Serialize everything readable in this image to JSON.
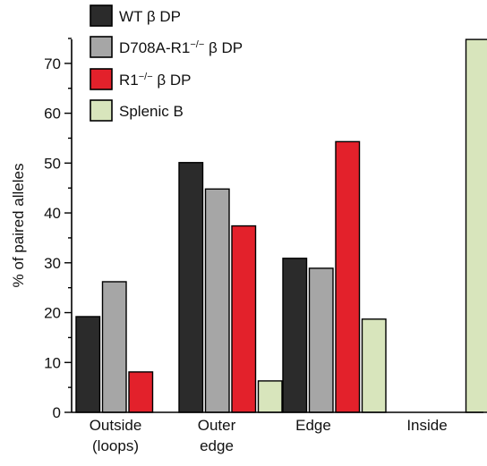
{
  "chart_data": {
    "type": "bar",
    "categories": [
      [
        "Outside",
        "(loops)"
      ],
      [
        "Outer",
        "edge"
      ],
      [
        "Edge"
      ],
      [
        "Inside"
      ]
    ],
    "series": [
      {
        "name": "WT β DP",
        "name_parts": [
          "WT ",
          "β",
          " DP"
        ],
        "sup": "",
        "color": "#2b2b2b",
        "values": [
          19.2,
          50.1,
          30.9,
          0
        ]
      },
      {
        "name": "D708A-R1−/− β DP",
        "name_parts": [
          "D708A-R1",
          "β",
          " DP"
        ],
        "sup": "−/−",
        "color": "#a6a6a6",
        "values": [
          26.2,
          44.8,
          28.9,
          0
        ]
      },
      {
        "name": "R1−/− β DP",
        "name_parts": [
          "R1",
          "β",
          " DP"
        ],
        "sup": "−/−",
        "color": "#e3212b",
        "values": [
          8.1,
          37.4,
          54.3,
          0
        ]
      },
      {
        "name": "Splenic B",
        "name_parts": [
          "Splenic B",
          "",
          ""
        ],
        "sup": "",
        "color": "#d8e5bc",
        "values": [
          0,
          6.3,
          18.7,
          74.8
        ]
      }
    ],
    "ylabel": "% of paired alleles",
    "ylim": [
      0,
      75
    ],
    "yticks": [
      0,
      10,
      20,
      30,
      40,
      50,
      60,
      70
    ],
    "legend": "top-left"
  }
}
